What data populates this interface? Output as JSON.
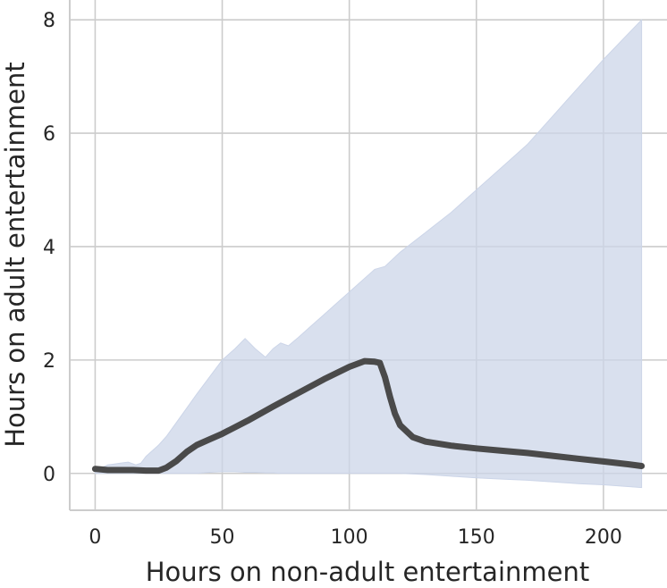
{
  "chart_data": {
    "type": "line",
    "title": "",
    "xlabel": "Hours on non-adult entertainment",
    "ylabel": "Hours on adult entertainment",
    "xlim": [
      -10,
      225
    ],
    "ylim": [
      -0.65,
      8.35
    ],
    "xticks": [
      0,
      50,
      100,
      150,
      200
    ],
    "yticks": [
      0,
      2,
      4,
      6,
      8
    ],
    "grid": true,
    "colors": {
      "line": "#4a4a4a",
      "band": "#ccd5e8",
      "grid": "#cccccc",
      "background": "#ffffff"
    },
    "series": [
      {
        "x": [
          0,
          5,
          10,
          15,
          20,
          25,
          28,
          32,
          36,
          40,
          45,
          50,
          60,
          70,
          80,
          90,
          100,
          106,
          110,
          112,
          114,
          116,
          118,
          120,
          125,
          130,
          140,
          150,
          160,
          170,
          180,
          190,
          200,
          210,
          215
        ],
        "y": [
          0.08,
          0.06,
          0.06,
          0.06,
          0.05,
          0.05,
          0.1,
          0.22,
          0.38,
          0.5,
          0.6,
          0.7,
          0.93,
          1.18,
          1.42,
          1.66,
          1.88,
          1.98,
          1.97,
          1.95,
          1.7,
          1.35,
          1.05,
          0.85,
          0.64,
          0.56,
          0.49,
          0.44,
          0.4,
          0.36,
          0.31,
          0.26,
          0.21,
          0.16,
          0.13
        ]
      }
    ],
    "band": {
      "x": [
        0,
        5,
        10,
        13,
        16,
        18,
        20,
        25,
        28,
        32,
        36,
        40,
        45,
        50,
        55,
        59,
        63,
        67,
        70,
        73,
        76,
        80,
        85,
        90,
        100,
        110,
        114,
        120,
        130,
        140,
        150,
        160,
        170,
        180,
        190,
        200,
        215
      ],
      "upper": [
        0.05,
        0.15,
        0.18,
        0.2,
        0.15,
        0.18,
        0.3,
        0.5,
        0.65,
        0.9,
        1.15,
        1.4,
        1.7,
        2.0,
        2.2,
        2.38,
        2.2,
        2.05,
        2.2,
        2.3,
        2.25,
        2.4,
        2.6,
        2.8,
        3.2,
        3.6,
        3.65,
        3.9,
        4.25,
        4.6,
        5.0,
        5.4,
        5.8,
        6.3,
        6.8,
        7.3,
        8.0
      ],
      "lower": [
        0.0,
        0.0,
        0.0,
        0.0,
        0.0,
        0.0,
        0.0,
        0.0,
        0.0,
        0.0,
        0.0,
        0.0,
        0.02,
        0.03,
        0.03,
        0.02,
        0.02,
        0.01,
        0.01,
        0.0,
        0.0,
        0.0,
        0.0,
        0.0,
        0.0,
        0.0,
        0.0,
        0.0,
        -0.02,
        -0.05,
        -0.08,
        -0.1,
        -0.12,
        -0.15,
        -0.18,
        -0.2,
        -0.25
      ]
    }
  }
}
